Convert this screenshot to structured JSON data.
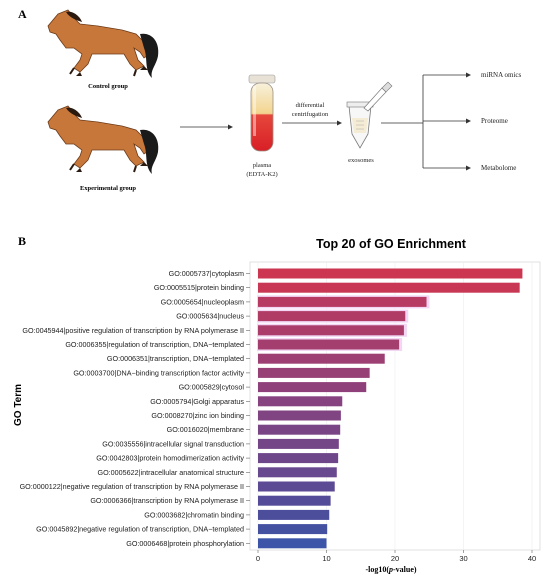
{
  "panel_a": {
    "letter": "A",
    "control_label": "Control group",
    "experimental_label": "Experimental group",
    "plasma_label": "plasma",
    "plasma_sub": "(EDTA-K2)",
    "step_line1": "differential",
    "step_line2": "centrifugation",
    "exosomes_label": "exosomes",
    "omics": [
      "miRNA omics",
      "Proteome",
      "Metabolome"
    ]
  },
  "panel_b": {
    "letter": "B"
  },
  "chart_data": {
    "type": "bar",
    "orientation": "horizontal",
    "title": "Top 20 of GO Enrichment",
    "ylabel": "GO Term",
    "xlabel_main": "-log10(",
    "xlabel_italic": "p",
    "xlabel_tail": "-value)",
    "xlim": [
      0,
      40
    ],
    "xticks": [
      "0",
      "10",
      "20",
      "30",
      "40"
    ],
    "categories": [
      "GO:0005737|cytoplasm",
      "GO:0005515|protein binding",
      "GO:0005654|nucleoplasm",
      "GO:0005634|nucleus",
      "GO:0045944|positive regulation of transcription by RNA polymerase II",
      "GO:0006355|regulation of transcription, DNA−templated",
      "GO:0006351|transcription, DNA−templated",
      "GO:0003700|DNA−binding transcription factor activity",
      "GO:0005829|cytosol",
      "GO:0005794|Golgi apparatus",
      "GO:0008270|zinc ion binding",
      "GO:0016020|membrane",
      "GO:0035556|intracellular signal transduction",
      "GO:0042803|protein homodimerization activity",
      "GO:0005622|intracellular anatomical structure",
      "GO:0000122|negative regulation of transcription by RNA polymerase II",
      "GO:0006366|transcription by RNA polymerase II",
      "GO:0003682|chromatin binding",
      "GO:0045892|negative regulation of transcription, DNA−templated",
      "GO:0006468|protein phosphorylation"
    ],
    "values": [
      38.6,
      38.2,
      24.6,
      21.5,
      21.3,
      20.6,
      18.5,
      16.3,
      15.8,
      12.3,
      12.1,
      12.0,
      11.8,
      11.7,
      11.5,
      11.2,
      10.6,
      10.4,
      10.1,
      10.0
    ],
    "colors": [
      "#cc3650",
      "#c83753",
      "#b73a62",
      "#b03c66",
      "#aa3d6a",
      "#a43e6e",
      "#9d3f72",
      "#964076",
      "#8f407a",
      "#86437f",
      "#804482",
      "#7a4585",
      "#744688",
      "#6e478b",
      "#68488e",
      "#5c4a94",
      "#544c98",
      "#4c4e9c",
      "#4451a1",
      "#3c55a8"
    ],
    "highlight_color": "#f2d6f3"
  }
}
